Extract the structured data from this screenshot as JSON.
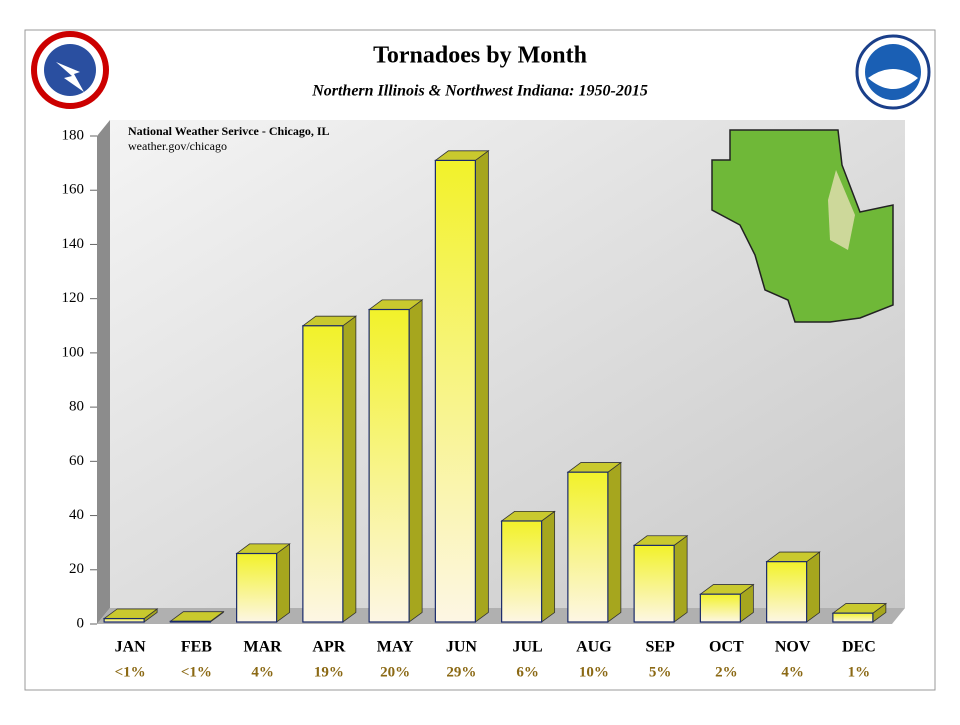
{
  "chart_data": {
    "type": "bar3d",
    "title": "Tornadoes by Month",
    "subtitle": "Northern Illinois & Northwest Indiana:  1950-2015",
    "annotations": [
      "National Weather Serivce - Chicago, IL",
      "weather.gov/chicago"
    ],
    "categories": [
      "JAN",
      "FEB",
      "MAR",
      "APR",
      "MAY",
      "JUN",
      "JUL",
      "AUG",
      "SEP",
      "OCT",
      "NOV",
      "DEC"
    ],
    "values": [
      2,
      1,
      26,
      110,
      116,
      171,
      38,
      56,
      29,
      11,
      23,
      4
    ],
    "percentages": [
      "<1%",
      "<1%",
      "4%",
      "19%",
      "20%",
      "29%",
      "6%",
      "10%",
      "5%",
      "2%",
      "4%",
      "1%"
    ],
    "color": "#f2f22a",
    "ylim": [
      0,
      180
    ],
    "yticks": [
      0,
      20,
      40,
      60,
      80,
      100,
      120,
      140,
      160,
      180
    ]
  }
}
